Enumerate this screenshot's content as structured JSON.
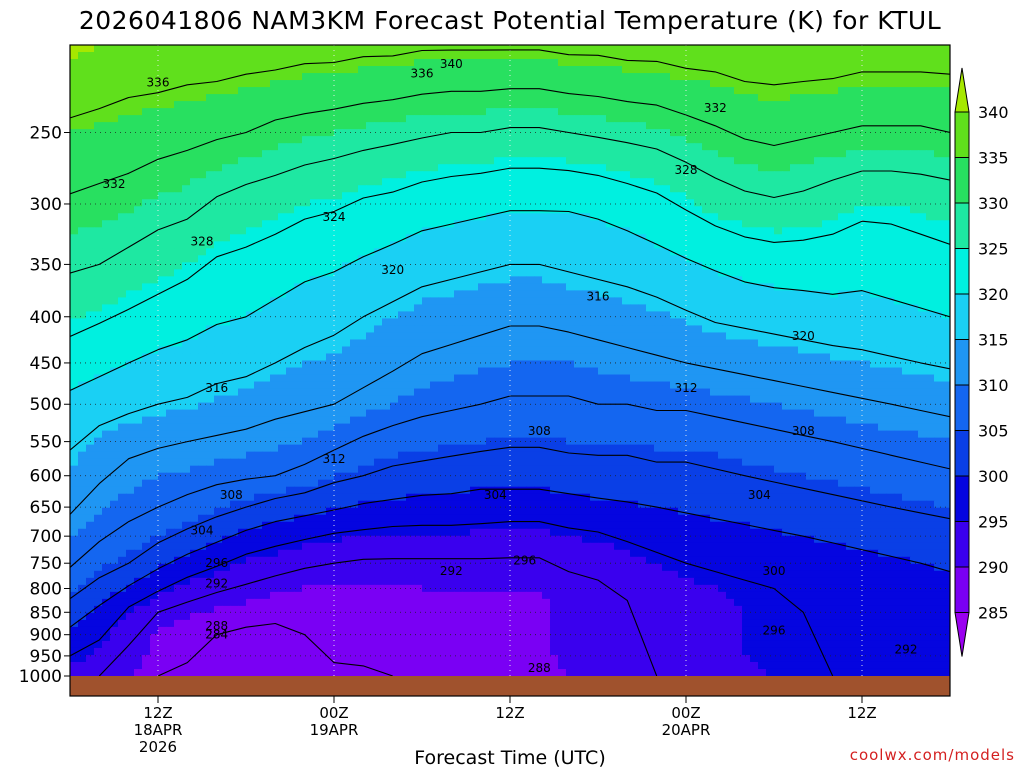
{
  "chart_data": {
    "type": "heatmap",
    "title": "2026041806 NAM3KM Forecast Potential Temperature (K) for KTUL",
    "xlabel": "Forecast Time (UTC)",
    "ylabel": "",
    "credit": "coolwx.com/models",
    "y_axis": {
      "scale": "log",
      "range": [
        1000,
        200
      ],
      "ticks": [
        250,
        300,
        350,
        400,
        450,
        500,
        550,
        600,
        650,
        700,
        750,
        800,
        850,
        900,
        950,
        1000
      ],
      "tick_labels": [
        "250",
        "300",
        "350",
        "400",
        "450",
        "500",
        "550",
        "600",
        "650",
        "700",
        "750",
        "800",
        "850",
        "900",
        "950",
        "1000"
      ]
    },
    "x_axis": {
      "units": "forecast hour",
      "range": [
        0,
        60
      ],
      "ticks": [
        {
          "hour": 6,
          "lines": [
            "12Z",
            "18APR",
            "2026"
          ]
        },
        {
          "hour": 18,
          "lines": [
            "00Z",
            "19APR"
          ]
        },
        {
          "hour": 30,
          "lines": [
            "12Z"
          ]
        },
        {
          "hour": 42,
          "lines": [
            "00Z",
            "20APR"
          ]
        },
        {
          "hour": 54,
          "lines": [
            "12Z"
          ]
        }
      ]
    },
    "colorbar": {
      "levels": [
        285,
        290,
        295,
        300,
        305,
        310,
        315,
        320,
        325,
        330,
        335,
        340
      ],
      "labels": [
        "285",
        "290",
        "295",
        "300",
        "305",
        "310",
        "315",
        "320",
        "325",
        "330",
        "335",
        "340"
      ],
      "colors": [
        "#9a00f0",
        "#7a00f4",
        "#3a00ee",
        "#0505e0",
        "#0a3fe6",
        "#1466f0",
        "#1f96f3",
        "#1ad0f4",
        "#00f0e0",
        "#1ee8a2",
        "#28e060",
        "#60e01c",
        "#a6e800"
      ]
    },
    "isentropes": {
      "levels": [
        284,
        288,
        292,
        296,
        300,
        304,
        308,
        312,
        316,
        320,
        324,
        328,
        332,
        336,
        340
      ],
      "labels": [
        "284",
        "288",
        "292",
        "296",
        "300",
        "304",
        "308",
        "312",
        "316",
        "320",
        "324",
        "328",
        "332",
        "336",
        "340"
      ],
      "interval_k": 4
    },
    "profiles": {
      "hours": [
        0,
        2,
        4,
        6,
        8,
        10,
        12,
        14,
        16,
        18,
        20,
        22,
        24,
        26,
        28,
        30,
        32,
        34,
        36,
        38,
        40,
        42,
        44,
        46,
        48,
        50,
        52,
        54,
        56,
        58,
        60
      ],
      "pressure_levels": [
        1000,
        950,
        900,
        850,
        800,
        750,
        700,
        650,
        600,
        550,
        500,
        450,
        400,
        350,
        300,
        250,
        200
      ],
      "theta_k": [
        [
          293,
          296,
          299,
          302,
          305.5,
          308.5,
          310.5,
          312.5,
          314.5,
          316.5,
          319,
          322,
          325.5,
          328.5,
          331.5,
          335,
          341
        ],
        [
          292,
          294.5,
          296.5,
          299,
          302.5,
          306,
          308.5,
          310.5,
          312.5,
          314.5,
          318,
          321,
          324.5,
          328,
          331,
          334.5,
          340
        ],
        [
          290,
          291.5,
          292.5,
          295,
          299.5,
          304,
          307,
          309,
          311,
          313,
          317,
          320,
          323.5,
          327,
          330.5,
          334,
          339
        ],
        [
          288,
          289,
          289.5,
          292,
          296.5,
          301,
          305,
          308,
          310,
          312.5,
          316,
          319,
          322.5,
          326,
          329.5,
          333.5,
          339
        ],
        [
          287,
          288.5,
          288.5,
          290.5,
          294,
          298.5,
          303,
          307,
          309.5,
          312,
          315.5,
          318.5,
          321.5,
          325,
          329,
          333,
          338.5
        ],
        [
          286.5,
          288,
          288,
          289.5,
          292.5,
          296.5,
          301,
          305.5,
          309,
          311.5,
          314.5,
          317.5,
          320.5,
          323.5,
          327.5,
          332.5,
          338.5
        ],
        [
          286,
          287.5,
          287.5,
          289,
          291.5,
          294.5,
          299,
          304,
          308.5,
          311,
          314,
          317,
          320,
          323,
          326.5,
          332,
          338
        ],
        [
          286,
          287.5,
          287.5,
          288.5,
          290.5,
          293.5,
          297.5,
          302.5,
          308,
          310.5,
          313,
          316,
          319,
          322,
          326,
          331,
          338
        ],
        [
          286.5,
          288,
          288,
          288.5,
          290,
          292.5,
          296.5,
          301.5,
          307,
          310,
          312.5,
          315,
          318,
          321,
          325,
          330.5,
          337.5
        ],
        [
          287,
          288.5,
          288.5,
          288.5,
          289.5,
          292,
          295.5,
          300.5,
          305,
          309,
          312,
          314.5,
          317,
          320.5,
          324.5,
          330,
          337.5
        ],
        [
          287.5,
          288.5,
          288.5,
          288.5,
          289.5,
          291.5,
          295,
          299.5,
          304,
          307.5,
          311,
          313.5,
          316,
          319.5,
          323.5,
          329.5,
          337
        ],
        [
          288,
          289,
          289,
          289,
          289.5,
          291.5,
          294.5,
          299,
          303,
          306.5,
          310,
          312.5,
          315,
          318.5,
          323,
          329,
          337
        ],
        [
          288.5,
          289.5,
          289.5,
          289.5,
          290,
          291.5,
          294.5,
          298.5,
          302.5,
          306,
          309,
          311.5,
          314,
          317.5,
          322,
          328.5,
          336.5
        ],
        [
          289,
          289.5,
          289.5,
          289.5,
          290,
          291.5,
          294.5,
          298.5,
          302,
          305.5,
          308.5,
          311,
          313.5,
          317,
          321.5,
          328,
          336.5
        ],
        [
          289,
          289.5,
          289.5,
          289.5,
          290,
          291.5,
          294.5,
          298,
          301.5,
          305,
          308,
          310.5,
          313,
          316.5,
          321,
          328,
          336.5
        ],
        [
          289,
          289.5,
          289.5,
          289.5,
          290,
          291.5,
          294,
          298,
          301.5,
          304.5,
          307.5,
          310,
          312.5,
          316,
          320.5,
          327.5,
          336.5
        ],
        [
          289,
          289.5,
          289.5,
          289.5,
          290,
          291.5,
          294,
          298,
          301.5,
          304.5,
          307.5,
          310,
          312.5,
          316,
          320.5,
          327.5,
          336.5
        ],
        [
          290,
          290.5,
          290.5,
          290.5,
          291,
          292.5,
          295,
          298.5,
          302,
          305,
          307.5,
          310,
          313,
          316.5,
          320.5,
          328,
          337
        ],
        [
          290.5,
          291,
          291,
          291,
          291.5,
          293,
          295.5,
          299,
          302.5,
          305,
          308,
          310.5,
          313.5,
          317,
          321,
          328.5,
          337
        ],
        [
          291,
          291.5,
          291.5,
          291.5,
          292.5,
          294,
          296.5,
          299.5,
          302.5,
          305,
          308,
          311,
          314,
          317.5,
          322,
          329,
          337.5
        ],
        [
          292,
          292.5,
          292.5,
          292.5,
          293.5,
          295,
          297.5,
          300,
          303,
          305.5,
          308.5,
          311.5,
          314.5,
          318.5,
          323,
          329.5,
          337.5
        ],
        [
          293,
          293.5,
          293.5,
          293.5,
          294.5,
          296,
          298,
          300.5,
          303,
          305.5,
          308.5,
          312,
          315.5,
          319.5,
          324.5,
          330.5,
          338
        ],
        [
          294,
          294.5,
          294.5,
          294.5,
          295,
          296.5,
          298.5,
          301,
          303.5,
          306,
          309,
          312.5,
          316.5,
          320.5,
          326,
          331.5,
          338
        ],
        [
          294.5,
          295,
          295,
          295,
          295.5,
          297,
          299,
          301.5,
          304,
          306.5,
          309.5,
          313,
          317,
          321.5,
          327,
          332.5,
          338.5
        ],
        [
          295,
          295.5,
          295.5,
          295.5,
          296,
          297.5,
          299.5,
          302,
          304.5,
          307,
          310,
          313.5,
          317.5,
          322,
          327.5,
          333,
          338.5
        ],
        [
          295.5,
          296,
          296,
          296,
          296.5,
          298,
          300,
          302.5,
          305,
          307.5,
          310.5,
          314,
          318,
          322,
          327,
          332.5,
          338.5
        ],
        [
          296,
          296.5,
          296.5,
          296.5,
          297,
          298.5,
          300.5,
          303,
          305.5,
          308,
          311,
          314.5,
          318.5,
          322,
          326,
          332,
          338.5
        ],
        [
          296.5,
          297,
          297,
          297,
          297.5,
          299,
          301,
          303.5,
          306,
          308.5,
          311.5,
          315,
          318.5,
          321.5,
          325,
          331.5,
          338
        ],
        [
          297,
          297.5,
          297.5,
          297.5,
          298,
          299.5,
          301.5,
          304,
          306.5,
          309,
          312,
          315.5,
          319,
          322,
          325,
          331.5,
          338
        ],
        [
          297.5,
          298,
          298,
          298,
          298.5,
          300,
          302,
          304.5,
          307,
          309.5,
          312.5,
          316,
          319.5,
          322.5,
          325.5,
          331.5,
          338
        ],
        [
          298,
          298.5,
          298.5,
          298.5,
          299,
          300.5,
          302.5,
          305,
          307.5,
          310,
          313,
          316.5,
          320,
          323,
          326,
          332,
          338
        ]
      ]
    },
    "contour_labels": [
      {
        "text": "340",
        "hour": 26,
        "p": 210
      },
      {
        "text": "336",
        "hour": 6,
        "p": 220
      },
      {
        "text": "336",
        "hour": 24,
        "p": 215
      },
      {
        "text": "332",
        "hour": 44,
        "p": 235
      },
      {
        "text": "332",
        "hour": 3,
        "p": 285
      },
      {
        "text": "328",
        "hour": 42,
        "p": 275
      },
      {
        "text": "328",
        "hour": 9,
        "p": 330
      },
      {
        "text": "324",
        "hour": 18,
        "p": 310
      },
      {
        "text": "320",
        "hour": 22,
        "p": 355
      },
      {
        "text": "320",
        "hour": 50,
        "p": 420
      },
      {
        "text": "316",
        "hour": 36,
        "p": 380
      },
      {
        "text": "316",
        "hour": 10,
        "p": 480
      },
      {
        "text": "312",
        "hour": 42,
        "p": 480
      },
      {
        "text": "312",
        "hour": 18,
        "p": 575
      },
      {
        "text": "308",
        "hour": 32,
        "p": 535
      },
      {
        "text": "308",
        "hour": 50,
        "p": 535
      },
      {
        "text": "308",
        "hour": 11,
        "p": 630
      },
      {
        "text": "304",
        "hour": 29,
        "p": 630
      },
      {
        "text": "304",
        "hour": 47,
        "p": 630
      },
      {
        "text": "304",
        "hour": 9,
        "p": 690
      },
      {
        "text": "300",
        "hour": 48,
        "p": 765
      },
      {
        "text": "296",
        "hour": 10,
        "p": 750
      },
      {
        "text": "296",
        "hour": 31,
        "p": 745
      },
      {
        "text": "296",
        "hour": 48,
        "p": 890
      },
      {
        "text": "292",
        "hour": 10,
        "p": 790
      },
      {
        "text": "292",
        "hour": 26,
        "p": 765
      },
      {
        "text": "292",
        "hour": 57,
        "p": 935
      },
      {
        "text": "288",
        "hour": 10,
        "p": 880
      },
      {
        "text": "288",
        "hour": 32,
        "p": 980
      },
      {
        "text": "284",
        "hour": 10,
        "p": 900
      }
    ]
  }
}
